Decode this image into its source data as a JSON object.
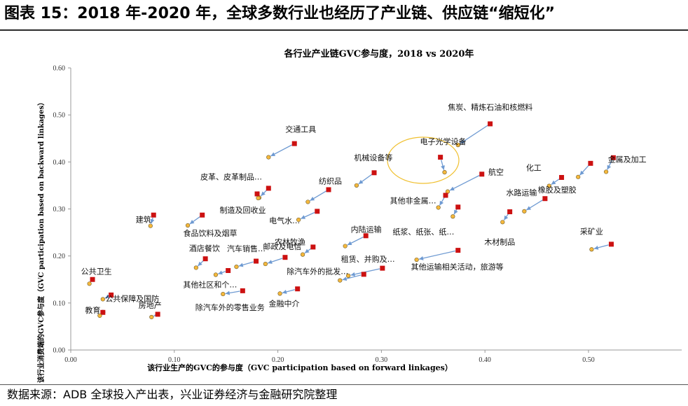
{
  "figure": {
    "heading": "图表 15：2018 年-2020 年，全球多数行业也经历了产业链、供应链“缩短化”",
    "source": "数据来源：ADB 全球投入产出表，兴业证券经济与金融研究院整理"
  },
  "colors": {
    "y2018": "#f5b83c",
    "y2018_edge": "#6b5a2a",
    "y2020": "#cc1111",
    "arrow": "#6e9ad2",
    "highlight": "#f0c030"
  },
  "chart_data": {
    "type": "scatter",
    "title": "各行业产业链GVC参与度，2018 vs 2020年",
    "xlabel": "该行业生产的GVC的参与度（GVC participation based on forward linkages）",
    "ylabel": "该行业消费端的GVC参与度（GVC participation based on backward linkages）",
    "xlim": [
      0,
      0.59
    ],
    "ylim": [
      0,
      0.6
    ],
    "xticks": [
      "0.00",
      "0.10",
      "0.20",
      "0.30",
      "0.40",
      "0.50"
    ],
    "yticks": [
      "0.00",
      "0.10",
      "0.20",
      "0.30",
      "0.40",
      "0.50",
      "0.60"
    ],
    "grid": false,
    "highlight": "电子光学设备",
    "points": [
      {
        "name": "焦炭、精炼石油和核燃料",
        "x2018": 0.374,
        "y2018": 0.436,
        "x2020": 0.405,
        "y2020": 0.481
      },
      {
        "name": "交通工具",
        "x2018": 0.191,
        "y2018": 0.41,
        "x2020": 0.216,
        "y2020": 0.439
      },
      {
        "name": "电子光学设备",
        "x2018": 0.361,
        "y2018": 0.378,
        "x2020": 0.357,
        "y2020": 0.41
      },
      {
        "name": "机械设备等",
        "x2018": 0.276,
        "y2018": 0.35,
        "x2020": 0.293,
        "y2020": 0.377
      },
      {
        "name": "航空",
        "x2018": 0.364,
        "y2018": 0.337,
        "x2020": 0.397,
        "y2020": 0.374
      },
      {
        "name": "化工",
        "x2018": 0.462,
        "y2018": 0.349,
        "x2020": 0.474,
        "y2020": 0.367
      },
      {
        "name": "橡胶及塑胶",
        "x2018": 0.49,
        "y2018": 0.368,
        "x2020": 0.502,
        "y2020": 0.397
      },
      {
        "name": "金属及加工",
        "x2018": 0.517,
        "y2018": 0.379,
        "x2020": 0.524,
        "y2020": 0.409
      },
      {
        "name": "皮革、皮革制品…",
        "x2018": 0.182,
        "y2018": 0.324,
        "x2020": 0.191,
        "y2020": 0.344
      },
      {
        "name": "纺织品",
        "x2018": 0.229,
        "y2018": 0.315,
        "x2020": 0.249,
        "y2020": 0.341
      },
      {
        "name": "制造及回收业",
        "x2018": 0.181,
        "y2018": 0.323,
        "x2020": 0.18,
        "y2020": 0.332
      },
      {
        "name": "其他非金属…",
        "x2018": 0.355,
        "y2018": 0.303,
        "x2020": 0.362,
        "y2020": 0.329
      },
      {
        "name": "电气水…",
        "x2018": 0.22,
        "y2018": 0.277,
        "x2020": 0.238,
        "y2020": 0.295
      },
      {
        "name": "纸浆、纸张、纸…",
        "x2018": 0.369,
        "y2018": 0.284,
        "x2020": 0.374,
        "y2020": 0.304
      },
      {
        "name": "木材制品",
        "x2018": 0.417,
        "y2018": 0.272,
        "x2020": 0.424,
        "y2020": 0.294
      },
      {
        "name": "水路运输",
        "x2018": 0.438,
        "y2018": 0.295,
        "x2020": 0.458,
        "y2020": 0.322
      },
      {
        "name": "建筑",
        "x2018": 0.077,
        "y2018": 0.264,
        "x2020": 0.08,
        "y2020": 0.287
      },
      {
        "name": "食品饮料及烟草",
        "x2018": 0.113,
        "y2018": 0.265,
        "x2020": 0.127,
        "y2020": 0.287
      },
      {
        "name": "内陆运输",
        "x2018": 0.265,
        "y2018": 0.221,
        "x2020": 0.285,
        "y2020": 0.243
      },
      {
        "name": "农林牧渔",
        "x2018": 0.224,
        "y2018": 0.203,
        "x2020": 0.234,
        "y2020": 0.219
      },
      {
        "name": "采矿业",
        "x2018": 0.503,
        "y2018": 0.214,
        "x2020": 0.522,
        "y2020": 0.225
      },
      {
        "name": "酒店餐饮",
        "x2018": 0.121,
        "y2018": 0.175,
        "x2020": 0.13,
        "y2020": 0.194
      },
      {
        "name": "汽车销售…",
        "x2018": 0.16,
        "y2018": 0.177,
        "x2020": 0.179,
        "y2020": 0.189
      },
      {
        "name": "邮政及电信",
        "x2018": 0.188,
        "y2018": 0.183,
        "x2020": 0.207,
        "y2020": 0.197
      },
      {
        "name": "其他运输相关活动，旅游等",
        "x2018": 0.334,
        "y2018": 0.192,
        "x2020": 0.374,
        "y2020": 0.212
      },
      {
        "name": "租赁、并购及…",
        "x2018": 0.268,
        "y2018": 0.158,
        "x2020": 0.301,
        "y2020": 0.174
      },
      {
        "name": "除汽车外的批发…",
        "x2018": 0.26,
        "y2018": 0.148,
        "x2020": 0.283,
        "y2020": 0.161
      },
      {
        "name": "其他社区和个…",
        "x2018": 0.14,
        "y2018": 0.16,
        "x2020": 0.152,
        "y2020": 0.169
      },
      {
        "name": "除汽车外的零售业务",
        "x2018": 0.147,
        "y2018": 0.119,
        "x2020": 0.166,
        "y2020": 0.126
      },
      {
        "name": "金融中介",
        "x2018": 0.202,
        "y2018": 0.12,
        "x2020": 0.219,
        "y2020": 0.13
      },
      {
        "name": "公共卫生",
        "x2018": 0.018,
        "y2018": 0.141,
        "x2020": 0.021,
        "y2020": 0.15
      },
      {
        "name": "公共保障及国防",
        "x2018": 0.031,
        "y2018": 0.108,
        "x2020": 0.039,
        "y2020": 0.117
      },
      {
        "name": "教育",
        "x2018": 0.028,
        "y2018": 0.073,
        "x2020": 0.031,
        "y2020": 0.08
      },
      {
        "name": "房地产",
        "x2018": 0.078,
        "y2018": 0.07,
        "x2020": 0.084,
        "y2020": 0.076
      }
    ]
  }
}
